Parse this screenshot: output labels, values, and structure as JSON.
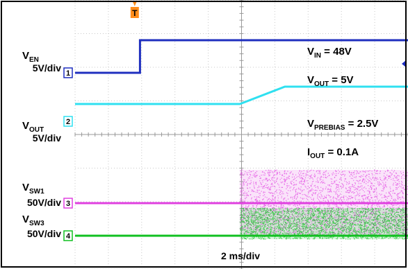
{
  "chart_data": {
    "type": "line",
    "grid": true,
    "x_scale": "2 ms/div",
    "x_label": "2 ms/div",
    "trigger_marker": "T",
    "series": [
      {
        "name": "V",
        "name_sub": "EN",
        "scale": "5V/div",
        "channel": "1",
        "color": "#1f2fbf",
        "x_div": [
          0,
          1.95,
          1.95,
          10
        ],
        "y_div": [
          0,
          0,
          1,
          1
        ]
      },
      {
        "name": "V",
        "name_sub": "OUT",
        "scale": "5V/div",
        "channel": "2",
        "color": "#2fe0f0",
        "x_div": [
          0,
          4.95,
          6.3,
          10
        ],
        "y_div": [
          0.5,
          0.5,
          1.0,
          1.0
        ]
      },
      {
        "name": "V",
        "name_sub": "SW1",
        "scale": "50V/div",
        "channel": "3",
        "color": "#e040e0",
        "x_div": [
          0,
          4.95,
          4.95,
          10
        ],
        "y_div": [
          0,
          0,
          0,
          0
        ],
        "switching": true,
        "switch_start_div": 4.95
      },
      {
        "name": "V",
        "name_sub": "SW3",
        "scale": "50V/div",
        "channel": "4",
        "color": "#10c020",
        "x_div": [
          0,
          4.95,
          4.95,
          10
        ],
        "y_div": [
          0,
          0,
          0,
          0
        ],
        "switching": true,
        "switch_start_div": 4.95
      }
    ],
    "annotations": [
      {
        "main": "V",
        "sub": "IN",
        "rest": " = 48V"
      },
      {
        "main": "V",
        "sub": "OUT",
        "rest": " = 5V"
      },
      {
        "main": "V",
        "sub": "PREBIAS",
        "rest": " = 2.5V"
      },
      {
        "main": "I",
        "sub": "OUT",
        "rest": " = 0.1A"
      }
    ]
  }
}
